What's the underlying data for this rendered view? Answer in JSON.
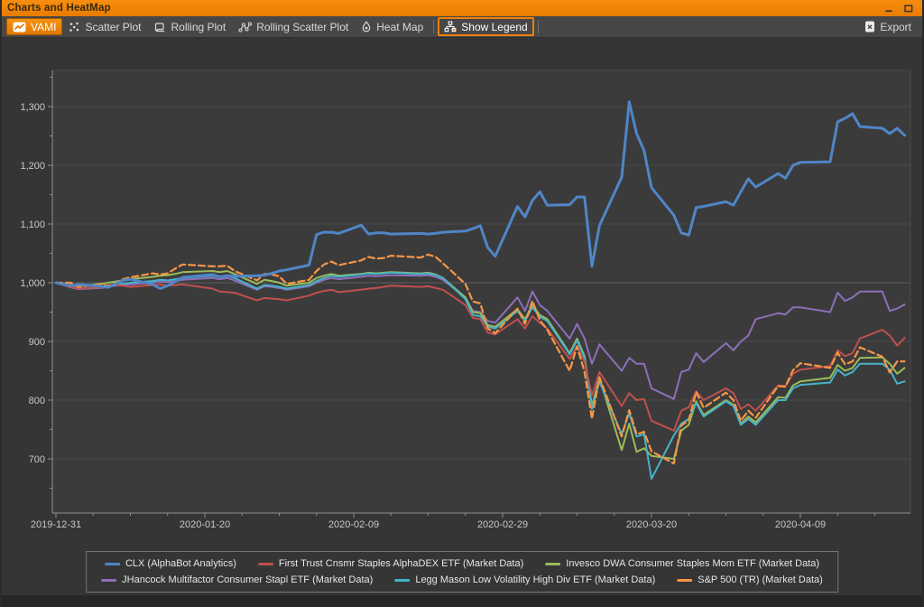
{
  "window": {
    "title": "Charts and HeatMap",
    "controls": [
      {
        "name": "minimize",
        "icon": "minimize-icon"
      },
      {
        "name": "maximize",
        "icon": "maximize-icon"
      }
    ]
  },
  "toolbar": {
    "accent_color": "#ef8109",
    "tabs": [
      {
        "label": "VAMI",
        "icon": "vami-icon",
        "state": "active"
      },
      {
        "label": "Scatter Plot",
        "icon": "scatter-plot-icon",
        "state": "normal"
      },
      {
        "label": "Rolling Plot",
        "icon": "rolling-plot-icon",
        "state": "normal"
      },
      {
        "label": "Rolling Scatter Plot",
        "icon": "rolling-scatter-plot-icon",
        "state": "normal"
      },
      {
        "label": "Heat Map",
        "icon": "heat-map-icon",
        "state": "normal"
      },
      {
        "separator": true
      },
      {
        "label": "Show Legend",
        "icon": "show-legend-icon",
        "state": "toggled"
      },
      {
        "separator": true
      }
    ],
    "export_label": "Export"
  },
  "chart_data": {
    "type": "line",
    "title": "",
    "x_axis": {
      "start_date": "2019-12-31",
      "tick_labels": [
        "2019-12-31",
        "2020-01-20",
        "2020-02-09",
        "2020-02-29",
        "2020-03-20",
        "2020-04-09"
      ],
      "tick_days": [
        0,
        20,
        40,
        60,
        80,
        100
      ],
      "minor_tick_every_days": 5,
      "domain_days": [
        0,
        115
      ]
    },
    "y_axis": {
      "ticks": [
        700,
        800,
        900,
        1000,
        1100,
        1200,
        1300
      ],
      "minor_tick_every": 50,
      "value_at_bottom": 608,
      "value_at_top": 1366,
      "grid": true
    },
    "legend": {
      "position": "bottom",
      "items_per_row": 3
    },
    "days": [
      0,
      2,
      3,
      6,
      7,
      8,
      9,
      10,
      13,
      14,
      15,
      16,
      17,
      21,
      22,
      23,
      24,
      27,
      28,
      29,
      30,
      31,
      34,
      35,
      36,
      37,
      38,
      41,
      42,
      43,
      44,
      45,
      49,
      50,
      51,
      52,
      55,
      56,
      57,
      58,
      59,
      62,
      63,
      64,
      65,
      66,
      69,
      70,
      71,
      72,
      73,
      76,
      77,
      78,
      79,
      80,
      83,
      84,
      85,
      86,
      87,
      90,
      91,
      92,
      93,
      94,
      97,
      98,
      99,
      100,
      104,
      105,
      106,
      107,
      108,
      111,
      112,
      113,
      114
    ],
    "series": [
      {
        "name": "CLX (AlphaBot Analytics)",
        "color": "#4f86c6",
        "width": 3,
        "dashed": false,
        "values": [
          1000,
          995,
          997,
          994,
          992,
          998,
          1004,
          1006,
          997,
          990,
          995,
          1002,
          1009,
          1014,
          1010,
          1012,
          1011,
          1012,
          1013,
          1016,
          1020,
          1022,
          1030,
          1082,
          1086,
          1086,
          1084,
          1098,
          1083,
          1085,
          1085,
          1083,
          1084,
          1083,
          1084,
          1086,
          1088,
          1092,
          1097,
          1060,
          1045,
          1130,
          1112,
          1140,
          1155,
          1132,
          1133,
          1146,
          1146,
          1028,
          1097,
          1180,
          1308,
          1254,
          1225,
          1162,
          1115,
          1085,
          1081,
          1128,
          1130,
          1138,
          1132,
          1155,
          1177,
          1163,
          1186,
          1178,
          1200,
          1205,
          1206,
          1274,
          1280,
          1288,
          1266,
          1263,
          1254,
          1263,
          1251
        ]
      },
      {
        "name": "First Trust Cnsmr Staples AlphaDEX ETF (Market Data)",
        "color": "#c0504d",
        "width": 2,
        "dashed": false,
        "values": [
          1000,
          993,
          990,
          992,
          996,
          997,
          995,
          993,
          996,
          997,
          995,
          996,
          997,
          990,
          985,
          984,
          983,
          970,
          974,
          973,
          972,
          970,
          978,
          983,
          986,
          988,
          984,
          988,
          990,
          991,
          993,
          995,
          993,
          994,
          991,
          988,
          962,
          940,
          938,
          915,
          912,
          938,
          922,
          943,
          932,
          922,
          870,
          892,
          865,
          808,
          848,
          790,
          812,
          800,
          802,
          765,
          748,
          782,
          788,
          815,
          800,
          820,
          812,
          785,
          793,
          782,
          825,
          824,
          845,
          852,
          858,
          885,
          875,
          880,
          905,
          920,
          910,
          893,
          906
        ]
      },
      {
        "name": "Invesco DWA Consumer Staples Mom ETF (Market Data)",
        "color": "#9bbb59",
        "width": 2,
        "dashed": false,
        "values": [
          1000,
          996,
          994,
          998,
          1000,
          1002,
          1004,
          1006,
          1010,
          1012,
          1013,
          1015,
          1018,
          1020,
          1018,
          1020,
          1015,
          998,
          1005,
          1003,
          1000,
          995,
          1000,
          1008,
          1012,
          1015,
          1012,
          1015,
          1017,
          1016,
          1017,
          1018,
          1016,
          1017,
          1014,
          1008,
          975,
          950,
          948,
          928,
          925,
          955,
          938,
          962,
          945,
          938,
          880,
          905,
          875,
          790,
          838,
          715,
          760,
          712,
          718,
          705,
          700,
          748,
          758,
          798,
          775,
          800,
          792,
          760,
          772,
          762,
          805,
          804,
          825,
          832,
          838,
          860,
          850,
          855,
          872,
          873,
          862,
          845,
          855
        ]
      },
      {
        "name": "JHancock Multifactor Consumer Stapl ETF (Market Data)",
        "color": "#8e6fb8",
        "width": 2,
        "dashed": false,
        "values": [
          1000,
          992,
          989,
          991,
          993,
          995,
          996,
          997,
          1000,
          1002,
          1001,
          1003,
          1005,
          1008,
          1006,
          1008,
          1004,
          988,
          994,
          993,
          991,
          988,
          994,
          1000,
          1005,
          1008,
          1006,
          1010,
          1012,
          1011,
          1012,
          1013,
          1012,
          1013,
          1010,
          1005,
          975,
          952,
          950,
          935,
          932,
          975,
          952,
          985,
          962,
          952,
          905,
          930,
          905,
          862,
          895,
          850,
          872,
          862,
          862,
          820,
          802,
          848,
          852,
          880,
          865,
          897,
          885,
          900,
          910,
          938,
          948,
          946,
          958,
          958,
          950,
          983,
          969,
          975,
          985,
          985,
          952,
          956,
          963
        ]
      },
      {
        "name": "Legg Mason Low Volatility High Div ETF (Market Data)",
        "color": "#45b3c9",
        "width": 2,
        "dashed": false,
        "values": [
          1000,
          993,
          990,
          992,
          995,
          997,
          998,
          1000,
          1003,
          1005,
          1004,
          1006,
          1008,
          1012,
          1010,
          1012,
          1008,
          990,
          996,
          995,
          993,
          990,
          996,
          1003,
          1008,
          1012,
          1010,
          1014,
          1016,
          1015,
          1016,
          1017,
          1015,
          1016,
          1013,
          1008,
          972,
          945,
          943,
          925,
          922,
          952,
          935,
          958,
          942,
          935,
          878,
          902,
          872,
          785,
          832,
          742,
          778,
          738,
          742,
          666,
          740,
          760,
          768,
          795,
          772,
          798,
          790,
          758,
          768,
          758,
          800,
          800,
          820,
          826,
          830,
          852,
          842,
          848,
          862,
          862,
          852,
          828,
          832
        ]
      },
      {
        "name": "S&P 500 (TR) (Market Data)",
        "color": "#f79646",
        "width": 2.2,
        "dashed": true,
        "values": [
          1000,
          1000,
          993,
          997,
          994,
          999,
          1006,
          1009,
          1016,
          1014,
          1016,
          1024,
          1031,
          1028,
          1028,
          1029,
          1020,
          1004,
          1015,
          1014,
          1011,
          998,
          1005,
          1020,
          1031,
          1036,
          1030,
          1038,
          1044,
          1041,
          1042,
          1046,
          1043,
          1048,
          1044,
          1033,
          998,
          968,
          965,
          922,
          914,
          956,
          930,
          969,
          936,
          920,
          850,
          892,
          848,
          768,
          839,
          738,
          783,
          742,
          746,
          713,
          692,
          757,
          766,
          814,
          787,
          813,
          800,
          765,
          782,
          770,
          824,
          823,
          851,
          863,
          855,
          881,
          861,
          866,
          890,
          874,
          847,
          866,
          866
        ]
      }
    ],
    "draw_order": [
      3,
      2,
      4,
      1,
      5,
      0
    ]
  }
}
